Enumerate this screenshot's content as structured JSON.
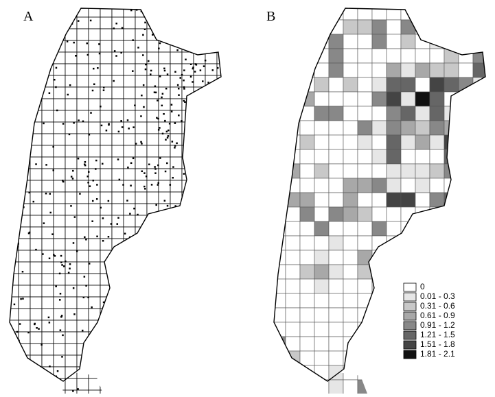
{
  "panels": [
    {
      "label": "A"
    },
    {
      "label": "B"
    }
  ],
  "legend": {
    "items": [
      {
        "label": "0",
        "color": "#ffffff"
      },
      {
        "label": "0.01 - 0.3",
        "color": "#e6e6e6"
      },
      {
        "label": "0.31 - 0.6",
        "color": "#c8c8c8"
      },
      {
        "label": "0.61 - 0.9",
        "color": "#a8a8a8"
      },
      {
        "label": "0.91 - 1.2",
        "color": "#888888"
      },
      {
        "label": "1.21 - 1.5",
        "color": "#666666"
      },
      {
        "label": "1.51 - 1.8",
        "color": "#444444"
      },
      {
        "label": "1.81 - 2.1",
        "color": "#111111"
      }
    ]
  }
}
